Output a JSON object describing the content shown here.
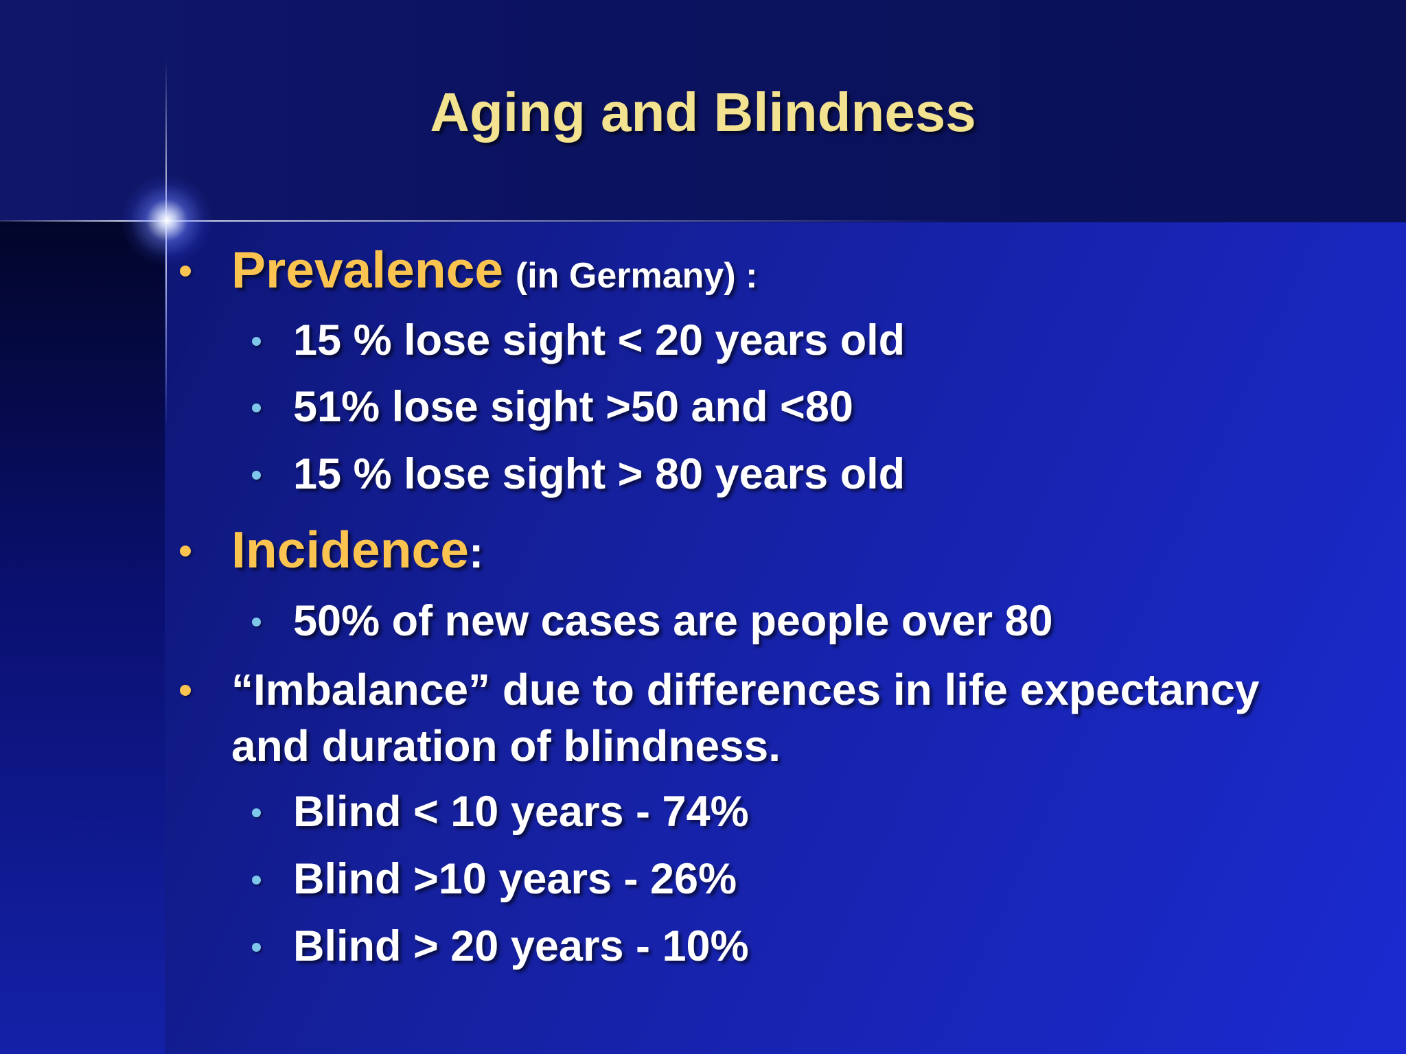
{
  "slide": {
    "title": "Aging and Blindness",
    "prevalence": {
      "heading": "Prevalence",
      "qualifier": "(in Germany)",
      "suffix": " :",
      "items": [
        "15 % lose sight  < 20 years old",
        "51% lose sight >50 and <80",
        "15 % lose sight  > 80 years old"
      ]
    },
    "incidence": {
      "heading": "Incidence",
      "suffix": ":",
      "items": [
        "50% of new cases are people over 80"
      ]
    },
    "imbalance": {
      "line1": "“Imbalance” due to differences in life expectancy",
      "line2": "and duration of blindness.",
      "items": [
        "Blind < 10 years - 74%",
        "Blind >10 years  - 26%",
        "Blind > 20 years - 10%"
      ]
    }
  },
  "colors": {
    "title": "#f3e290",
    "accent": "#fbc450",
    "sub_bullet": "#7ec6ea",
    "text": "#ffffff",
    "background": "#1b2ad0"
  }
}
